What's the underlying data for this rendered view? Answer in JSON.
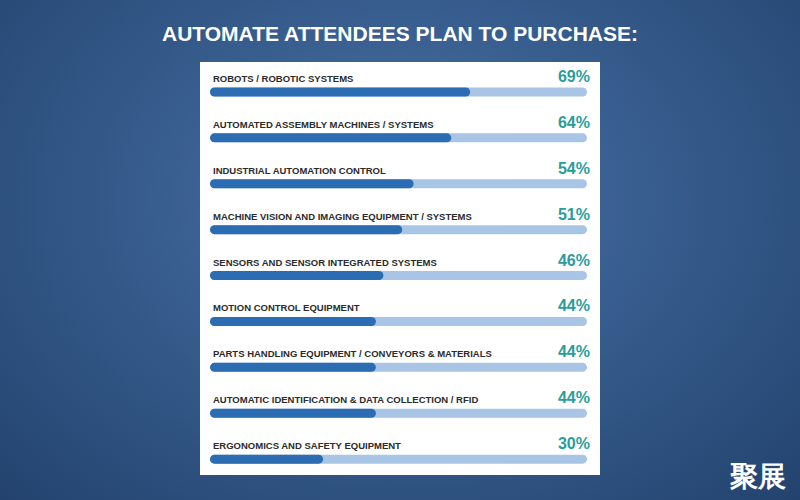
{
  "chart_data": {
    "type": "bar",
    "title": "AUTOMATE ATTENDEES PLAN TO PURCHASE:",
    "orientation": "horizontal",
    "categories": [
      "ROBOTS / ROBOTIC SYSTEMS",
      "AUTOMATED ASSEMBLY MACHINES / SYSTEMS",
      "INDUSTRIAL AUTOMATION CONTROL",
      "MACHINE VISION AND IMAGING EQUIPMENT / SYSTEMS",
      "SENSORS AND SENSOR INTEGRATED SYSTEMS",
      "MOTION CONTROL EQUIPMENT",
      "PARTS HANDLING EQUIPMENT / CONVEYORS & MATERIALS",
      "AUTOMATIC IDENTIFICATION & DATA COLLECTION / RFID",
      "ERGONOMICS AND SAFETY EQUIPMENT"
    ],
    "values": [
      69,
      64,
      54,
      51,
      46,
      44,
      44,
      44,
      30
    ],
    "value_labels": [
      "69%",
      "64%",
      "54%",
      "51%",
      "46%",
      "44%",
      "44%",
      "44%",
      "30%"
    ],
    "xlim": [
      0,
      100
    ],
    "color": "#2b6cb3",
    "grid": false,
    "tick_labels": false,
    "data_labels": true,
    "annotations": [
      "聚展"
    ]
  }
}
